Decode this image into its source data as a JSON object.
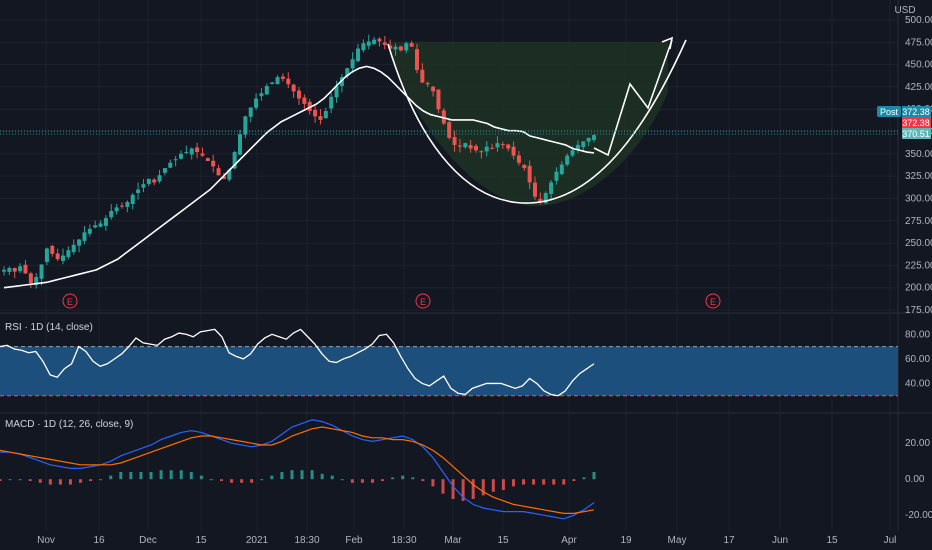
{
  "header": {
    "currency": "USD"
  },
  "colors": {
    "background": "#131722",
    "grid": "#1e222d",
    "axis_text": "#b2b5be",
    "up": "#26a69a",
    "down": "#ef5350",
    "annotation": "#ffffff",
    "cup_fill": "#1f3325",
    "rsi_band": "#1c4f7c",
    "rsi_line": "#ffffff",
    "macd_line": "#2962ff",
    "signal_line": "#ff6d00",
    "post_badge": "#1e88a8",
    "price_badge": "#f23645",
    "last_badge": "#5fb7b8"
  },
  "price_badges": {
    "post_label": "Post",
    "post_value": "372.38",
    "price": "372.38",
    "last": "370.51"
  },
  "earnings_marker": "E",
  "rsi_panel": {
    "title": "RSI · 1D (14, close)"
  },
  "macd_panel": {
    "title": "MACD · 1D (12, 26, close, 9)"
  },
  "chart_data": [
    {
      "type": "candlestick",
      "panel": "price",
      "ylim": [
        175,
        500
      ],
      "y_ticks": [
        "500.00",
        "475.00",
        "450.00",
        "425.00",
        "400.00",
        "375.00",
        "350.00",
        "325.00",
        "300.00",
        "275.00",
        "250.00",
        "225.00",
        "200.00",
        "175.00"
      ],
      "x_ticks": [
        "Nov",
        "16",
        "Dec",
        "15",
        "2021",
        "18:30",
        "Feb",
        "18:30",
        "Mar",
        "15",
        "Apr",
        "19",
        "May",
        "17",
        "Jun",
        "15",
        "Jul"
      ],
      "close_path": [
        220,
        222,
        218,
        224,
        216,
        205,
        212,
        226,
        244,
        238,
        232,
        236,
        242,
        248,
        254,
        262,
        266,
        270,
        272,
        278,
        286,
        290,
        292,
        296,
        304,
        310,
        316,
        322,
        318,
        326,
        334,
        340,
        344,
        350,
        352,
        356,
        352,
        348,
        342,
        336,
        326,
        322,
        332,
        352,
        372,
        392,
        402,
        412,
        418,
        426,
        430,
        436,
        434,
        428,
        420,
        412,
        406,
        398,
        392,
        388,
        398,
        414,
        426,
        436,
        446,
        456,
        468,
        474,
        476,
        478,
        476,
        472,
        468,
        470,
        466,
        474,
        470,
        444,
        430,
        428,
        420,
        400,
        384,
        368,
        360,
        358,
        362,
        356,
        354,
        352,
        358,
        356,
        362,
        360,
        356,
        348,
        340,
        334,
        318,
        302,
        296,
        306,
        318,
        330,
        338,
        348,
        354,
        360,
        364,
        368,
        371
      ],
      "moving_average_path": [
        200,
        201,
        202,
        203,
        204,
        205,
        206,
        208,
        210,
        212,
        214,
        216,
        218,
        220,
        224,
        228,
        232,
        238,
        244,
        250,
        256,
        262,
        268,
        274,
        280,
        286,
        292,
        298,
        304,
        310,
        318,
        326,
        334,
        342,
        350,
        358,
        366,
        374,
        380,
        386,
        390,
        394,
        398,
        402,
        406,
        412,
        420,
        428,
        436,
        442,
        446,
        448,
        446,
        442,
        436,
        428,
        420,
        412,
        404,
        398,
        394,
        392,
        390,
        388,
        388,
        388,
        388,
        386,
        384,
        380,
        378,
        376,
        376,
        375,
        370,
        368,
        366,
        364,
        362,
        360,
        356,
        354,
        352,
        351
      ]
    },
    {
      "type": "line",
      "panel": "rsi",
      "name": "RSI",
      "ylim": [
        20,
        90
      ],
      "y_ticks": [
        "80.00",
        "60.00",
        "40.00"
      ],
      "band": [
        30,
        70
      ],
      "values": [
        70,
        71,
        68,
        67,
        65,
        66,
        58,
        47,
        45,
        52,
        56,
        70,
        66,
        58,
        54,
        56,
        60,
        64,
        70,
        77,
        73,
        72,
        71,
        76,
        78,
        81,
        80,
        78,
        82,
        83,
        84,
        78,
        65,
        62,
        60,
        64,
        72,
        77,
        80,
        78,
        76,
        81,
        84,
        78,
        72,
        64,
        58,
        57,
        60,
        62,
        65,
        68,
        72,
        79,
        80,
        73,
        62,
        52,
        44,
        40,
        38,
        42,
        46,
        36,
        32,
        31,
        36,
        38,
        40,
        40,
        40,
        38,
        36,
        38,
        44,
        40,
        34,
        31,
        30,
        34,
        42,
        48,
        52,
        56
      ]
    },
    {
      "type": "line",
      "panel": "macd",
      "ylim": [
        -26,
        34
      ],
      "y_ticks": [
        "20.00",
        "0.00",
        "-20.00"
      ],
      "series": [
        {
          "name": "MACD",
          "values": [
            15,
            15,
            14,
            12,
            10,
            8,
            7,
            6,
            6,
            7,
            8,
            10,
            13,
            15,
            17,
            19,
            22,
            24,
            26,
            27,
            26,
            24,
            22,
            20,
            19,
            18,
            19,
            21,
            25,
            29,
            31,
            33,
            32,
            30,
            27,
            24,
            22,
            21,
            22,
            23,
            24,
            22,
            18,
            12,
            4,
            -4,
            -10,
            -14,
            -16,
            -17,
            -18,
            -18,
            -18,
            -19,
            -20,
            -21,
            -22,
            -20,
            -17,
            -13
          ]
        },
        {
          "name": "Signal",
          "values": [
            16,
            15,
            14,
            13,
            12,
            11,
            10,
            9,
            8,
            8,
            8,
            8,
            9,
            11,
            13,
            15,
            17,
            19,
            21,
            23,
            24,
            24,
            23,
            22,
            21,
            20,
            19,
            19,
            21,
            24,
            26,
            28,
            29,
            28,
            27,
            26,
            24,
            23,
            23,
            22,
            22,
            21,
            19,
            16,
            12,
            7,
            2,
            -3,
            -7,
            -10,
            -12,
            -14,
            -15,
            -16,
            -17,
            -18,
            -19,
            -19,
            -18,
            -17
          ]
        },
        {
          "name": "Histogram",
          "values": [
            -1,
            0,
            0,
            -1,
            -2,
            -3,
            -3,
            -3,
            -2,
            -1,
            0,
            2,
            4,
            4,
            4,
            4,
            5,
            5,
            5,
            4,
            2,
            0,
            -1,
            -2,
            -2,
            -2,
            0,
            2,
            4,
            5,
            5,
            5,
            3,
            2,
            0,
            -2,
            -2,
            -2,
            -1,
            1,
            2,
            1,
            -1,
            -4,
            -8,
            -11,
            -12,
            -11,
            -9,
            -7,
            -6,
            -4,
            -3,
            -3,
            -3,
            -3,
            -3,
            -1,
            1,
            4
          ]
        }
      ]
    }
  ]
}
